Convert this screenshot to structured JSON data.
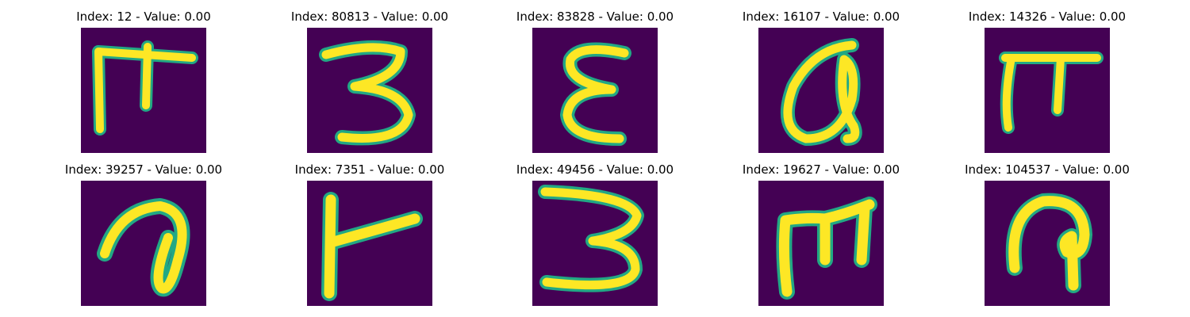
{
  "colors": {
    "background": "#440154",
    "stroke": "#fde725",
    "edge": "#22a884"
  },
  "images": [
    {
      "title": "Index: 12 - Value: 0.00",
      "glyph": "handwritten-digit-image"
    },
    {
      "title": "Index: 80813 - Value: 0.00",
      "glyph": "handwritten-3-image"
    },
    {
      "title": "Index: 83828 - Value: 0.00",
      "glyph": "handwritten-epsilon-image"
    },
    {
      "title": "Index: 16107 - Value: 0.00",
      "glyph": "handwritten-alpha-image"
    },
    {
      "title": "Index: 14326 - Value: 0.00",
      "glyph": "handwritten-pi-image"
    },
    {
      "title": "Index: 39257 - Value: 0.00",
      "glyph": "handwritten-a-image"
    },
    {
      "title": "Index: 7351 - Value: 0.00",
      "glyph": "handwritten-t-image"
    },
    {
      "title": "Index: 49456 - Value: 0.00",
      "glyph": "handwritten-3-image"
    },
    {
      "title": "Index: 19627 - Value: 0.00",
      "glyph": "handwritten-m-image"
    },
    {
      "title": "Index: 104537 - Value: 0.00",
      "glyph": "handwritten-p-image"
    }
  ]
}
